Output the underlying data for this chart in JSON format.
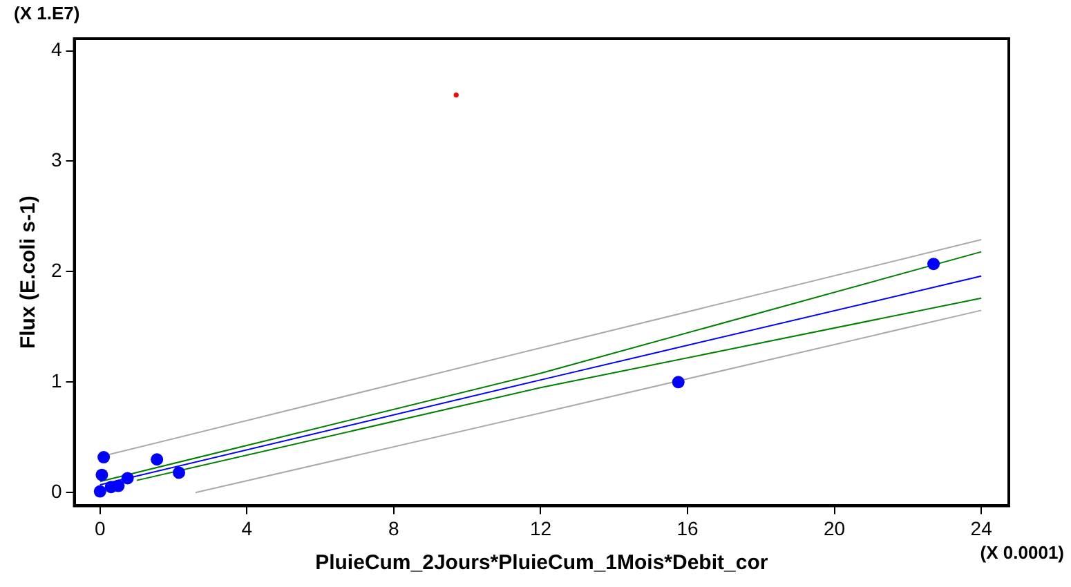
{
  "chart_data": {
    "type": "scatter",
    "xlabel": "PluieCum_2Jours*PluieCum_1Mois*Debit_cor",
    "ylabel": "Flux (E.coli s-1)",
    "annotations": [
      "(X 1.E7)",
      "(X 0.0001)"
    ],
    "xlim": [
      -0.7,
      24.75
    ],
    "ylim": [
      -0.12,
      4.11
    ],
    "xticks": [
      0,
      4,
      8,
      12,
      16,
      20,
      24
    ],
    "yticks": [
      0,
      1,
      2,
      3,
      4
    ],
    "grid": false,
    "legend": false,
    "series": [
      {
        "color": "#0000ff",
        "marker": "circle",
        "x": [
          22.7,
          15.75,
          2.15,
          1.55,
          0.75,
          0.5,
          0.3,
          0.1,
          0.05,
          0
        ],
        "values": [
          2.07,
          1.0,
          0.18,
          0.3,
          0.13,
          0.06,
          0.05,
          0.32,
          0.16,
          0.01
        ]
      },
      {
        "color": "#ff0000",
        "marker": "circle",
        "x": [
          9.7
        ],
        "values": [
          3.6
        ]
      },
      {
        "type": "line",
        "marker": "none",
        "color": "#0000ff",
        "x": [
          0,
          12,
          24
        ],
        "values": [
          0.07,
          1.02,
          1.96
        ]
      },
      {
        "type": "line",
        "marker": "none",
        "color": "#008000",
        "x": [
          0,
          12,
          24
        ],
        "values": [
          0.1,
          1.08,
          2.18
        ]
      },
      {
        "type": "line",
        "marker": "none",
        "color": "#008000",
        "x": [
          1,
          12,
          24
        ],
        "values": [
          0.11,
          0.95,
          1.76
        ]
      },
      {
        "type": "line",
        "marker": "none",
        "color": "#aaaaaa",
        "x": [
          0.2,
          12,
          24
        ],
        "values": [
          0.34,
          1.31,
          2.29
        ]
      },
      {
        "type": "line",
        "marker": "none",
        "color": "#aaaaaa",
        "x": [
          2.6,
          12,
          24
        ],
        "values": [
          0,
          0.72,
          1.65
        ]
      }
    ]
  }
}
